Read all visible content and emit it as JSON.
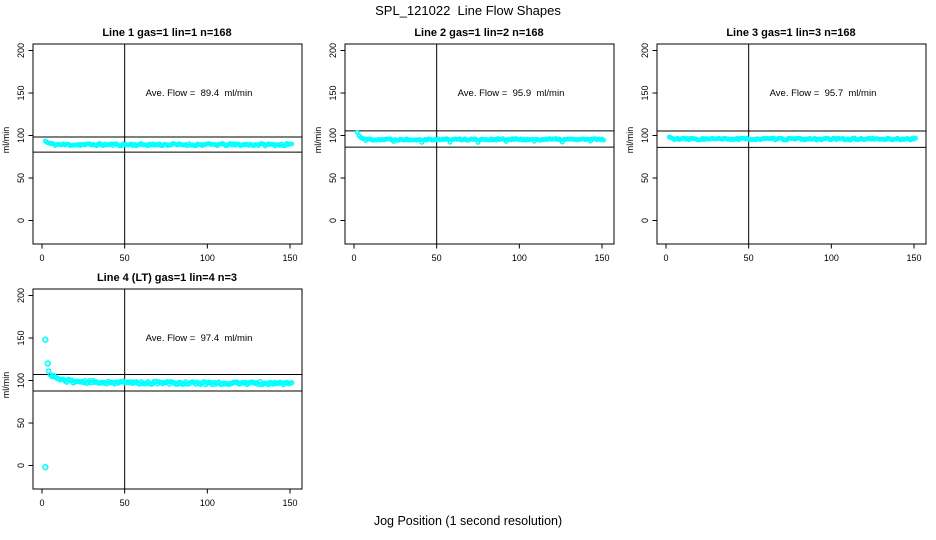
{
  "figure": {
    "title": "SPL_121022  Line Flow Shapes",
    "xlabel": "Jog Position (1 second resolution)",
    "background": "#ffffff",
    "line_color": "#000000",
    "point_color": "#00FFFF"
  },
  "chart_data": [
    {
      "type": "scatter",
      "title": "Line 1 gas=1 lin=1 n=168",
      "n": 168,
      "ave_flow": 89.4,
      "annotation": "Ave. Flow =  89.4  ml/min",
      "ylabel": "ml/min",
      "x_ticks": [
        0,
        50,
        100,
        150
      ],
      "y_ticks": [
        0,
        50,
        100,
        150,
        200
      ],
      "xlim": [
        -5.5,
        157.5
      ],
      "ylim": [
        -27.5,
        207.5
      ],
      "vline_x": 50,
      "ref_lines": {
        "upper": 98.3,
        "lower": 80.5
      },
      "series": {
        "x_start": 2,
        "x_end": 151,
        "step": 1,
        "start_y": 93.5,
        "settle_y": 89.2,
        "tau": 2.2,
        "noise": 1.4,
        "seed": 11,
        "dips": false,
        "point_radius": 1.7
      },
      "outliers": []
    },
    {
      "type": "scatter",
      "title": "Line 2 gas=1 lin=2 n=168",
      "n": 168,
      "ave_flow": 95.9,
      "annotation": "Ave. Flow =  95.9  ml/min",
      "ylabel": "ml/min",
      "x_ticks": [
        0,
        50,
        100,
        150
      ],
      "y_ticks": [
        0,
        50,
        100,
        150,
        200
      ],
      "xlim": [
        -5.5,
        157.5
      ],
      "ylim": [
        -27.5,
        207.5
      ],
      "vline_x": 50,
      "ref_lines": {
        "upper": 105.5,
        "lower": 86.3
      },
      "series": {
        "x_start": 2,
        "x_end": 151,
        "step": 1,
        "start_y": 103.5,
        "settle_y": 95.4,
        "tau": 2.0,
        "noise": 1.0,
        "seed": 22,
        "dips": true,
        "point_radius": 1.7
      },
      "outliers": []
    },
    {
      "type": "scatter",
      "title": "Line 3 gas=1 lin=3 n=168",
      "n": 168,
      "ave_flow": 95.7,
      "annotation": "Ave. Flow =  95.7  ml/min",
      "ylabel": "ml/min",
      "x_ticks": [
        0,
        50,
        100,
        150
      ],
      "y_ticks": [
        0,
        50,
        100,
        150,
        200
      ],
      "xlim": [
        -5.5,
        157.5
      ],
      "ylim": [
        -27.5,
        207.5
      ],
      "vline_x": 50,
      "ref_lines": {
        "upper": 105.3,
        "lower": 86.1
      },
      "series": {
        "x_start": 2,
        "x_end": 151,
        "step": 1,
        "start_y": 98.0,
        "settle_y": 95.8,
        "tau": 1.5,
        "noise": 1.1,
        "seed": 33,
        "dips": false,
        "point_radius": 1.7
      },
      "outliers": []
    },
    {
      "type": "scatter",
      "title": "Line 4 (LT) gas=1 lin=4 n=3",
      "n": 3,
      "ave_flow": 97.4,
      "annotation": "Ave. Flow =  97.4  ml/min",
      "ylabel": "ml/min",
      "x_ticks": [
        0,
        50,
        100,
        150
      ],
      "y_ticks": [
        0,
        50,
        100,
        150,
        200
      ],
      "xlim": [
        -5.5,
        157.5
      ],
      "ylim": [
        -27.5,
        207.5
      ],
      "vline_x": 50,
      "ref_lines": {
        "upper": 107.1,
        "lower": 87.7
      },
      "series": {
        "x_start": 4,
        "x_end": 151,
        "step": 1,
        "start_y": 107.5,
        "settle_y": 96.5,
        "tau": 5,
        "amp2": 2.5,
        "tau2": 55,
        "noise": 1.7,
        "seed": 44,
        "dips": false,
        "point_radius": 2.0
      },
      "outliers": [
        [
          2,
          -2
        ],
        [
          2,
          148
        ],
        [
          3.5,
          120
        ]
      ]
    }
  ]
}
